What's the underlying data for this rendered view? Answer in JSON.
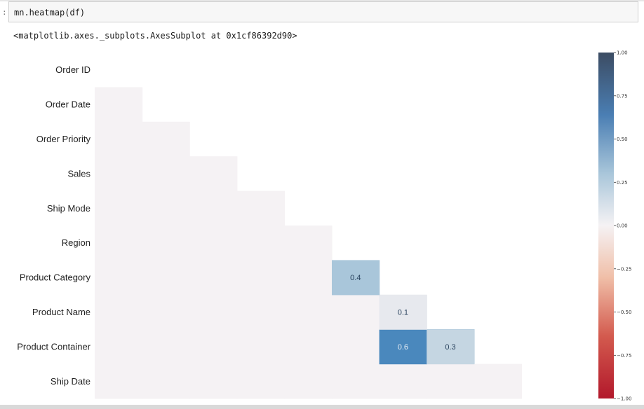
{
  "notebook": {
    "prompt_marker": ":",
    "code": "mn.heatmap(df)",
    "output": "<matplotlib.axes._subplots.AxesSubplot at 0x1cf86392d90>"
  },
  "chart_data": {
    "type": "heatmap",
    "title": "",
    "row_labels": [
      "Order ID",
      "Order Date",
      "Order Priority",
      "Sales",
      "Ship Mode",
      "Region",
      "Product Category",
      "Product Name",
      "Product Container",
      "Ship Date"
    ],
    "cells": [
      {
        "row": 8,
        "col": 7,
        "value": 0.6,
        "label": "0.6"
      },
      {
        "row": 8,
        "col": 8,
        "value": 0.3,
        "label": "0.3"
      },
      {
        "row": 7,
        "col": 7,
        "value": 0.1,
        "label": "0.1"
      },
      {
        "row": 6,
        "col": 6,
        "value": 0.4,
        "label": "0.4"
      }
    ],
    "mask": "upper-triangle",
    "colorbar": {
      "vmin": -1.0,
      "vmax": 1.0,
      "ticks": [
        "1.00",
        "0.75",
        "0.50",
        "0.25",
        "0.00",
        "-0.25",
        "-0.50",
        "-0.75",
        "-1.00"
      ],
      "colormap": "RdBu"
    },
    "colors": {
      "positive_strong": "#3c4c63",
      "positive_mid": "#4a84ba",
      "neutral": "#f5f2f4",
      "negative_mid": "#e3896e",
      "negative_strong": "#b2182b"
    }
  }
}
